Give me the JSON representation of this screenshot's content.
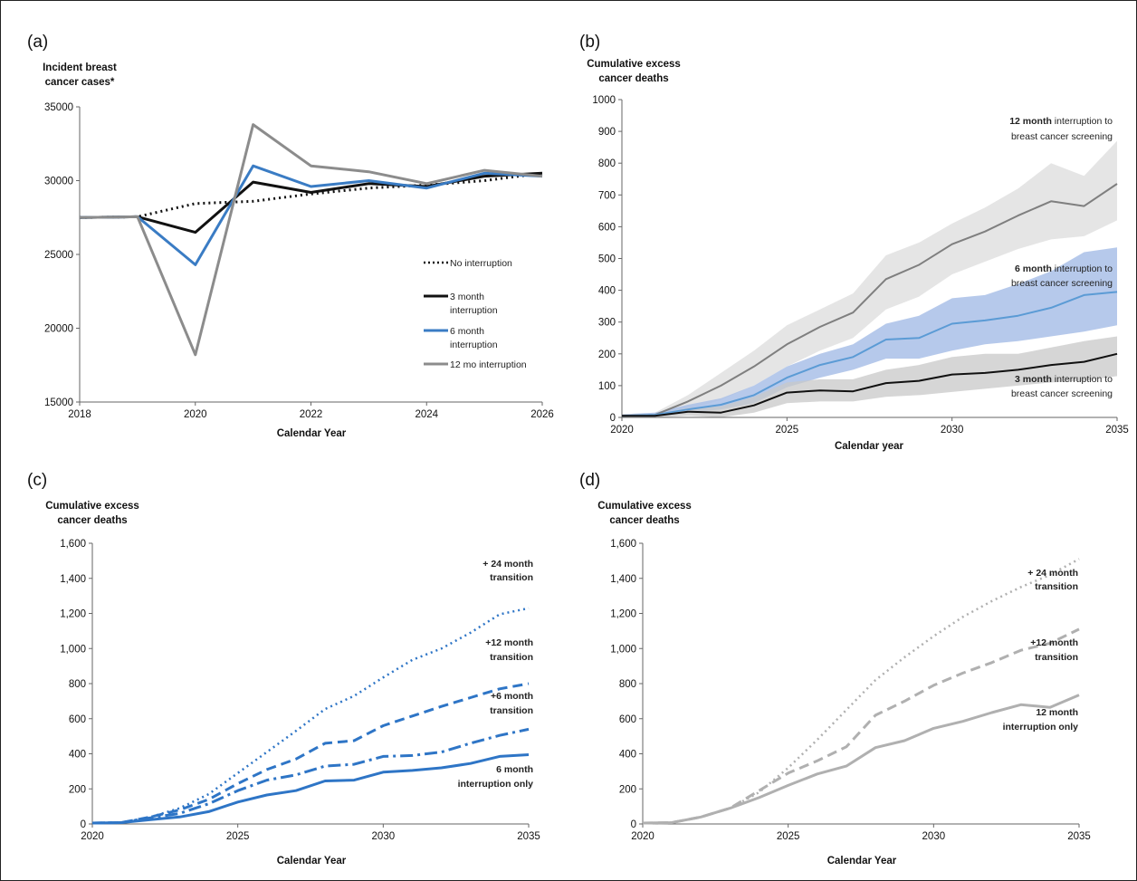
{
  "chart_data": [
    {
      "panel": "(a)",
      "type": "line",
      "title": "",
      "ylabel": "Incident breast cancer cases*",
      "xlabel": "Calendar Year",
      "xlim": [
        2018,
        2026
      ],
      "ylim": [
        15000,
        35000
      ],
      "xticks": [
        "2018",
        "2020",
        "2022",
        "2024",
        "2026"
      ],
      "yticks": [
        "15000",
        "20000",
        "25000",
        "30000",
        "35000"
      ],
      "x": [
        2018,
        2019,
        2020,
        2021,
        2022,
        2023,
        2024,
        2025,
        2026
      ],
      "series": [
        {
          "name": "No interruption",
          "color": "#111111",
          "style": "dotted",
          "values": [
            27500,
            27550,
            28450,
            28600,
            29100,
            29500,
            29700,
            30000,
            30500
          ]
        },
        {
          "name": "3 month interruption",
          "color": "#111111",
          "style": "solid",
          "values": [
            27500,
            27550,
            26500,
            29900,
            29200,
            29800,
            29600,
            30300,
            30500
          ]
        },
        {
          "name": "6 month interruption",
          "color": "#3a7cc4",
          "style": "solid",
          "values": [
            27500,
            27550,
            24300,
            31000,
            29600,
            30000,
            29500,
            30500,
            30300
          ]
        },
        {
          "name": "12 mo interruption",
          "color": "#8c8c8c",
          "style": "solid",
          "values": [
            27500,
            27550,
            18200,
            33800,
            31000,
            30600,
            29800,
            30700,
            30300
          ]
        }
      ]
    },
    {
      "panel": "(b)",
      "type": "line",
      "title": "",
      "ylabel": "Cumulative excess cancer deaths",
      "xlabel": "Calendar year",
      "xlim": [
        2020,
        2035
      ],
      "ylim": [
        0,
        1000
      ],
      "xticks": [
        "2020",
        "2025",
        "2030",
        "2035"
      ],
      "yticks": [
        "0",
        "100",
        "200",
        "300",
        "400",
        "500",
        "600",
        "700",
        "800",
        "900",
        "1000"
      ],
      "x": [
        2020,
        2021,
        2022,
        2023,
        2024,
        2025,
        2026,
        2027,
        2028,
        2029,
        2030,
        2031,
        2032,
        2033,
        2034,
        2035
      ],
      "series": [
        {
          "name": "12 month interruption to breast cancer screening",
          "color": "#7f7f7f",
          "band_color": "#dcdcdc",
          "values": [
            5,
            8,
            50,
            100,
            160,
            230,
            285,
            330,
            435,
            480,
            545,
            585,
            635,
            680,
            665,
            735
          ],
          "lower": [
            0,
            2,
            25,
            55,
            100,
            160,
            210,
            250,
            340,
            380,
            450,
            490,
            530,
            560,
            570,
            620
          ],
          "upper": [
            10,
            15,
            70,
            140,
            210,
            290,
            340,
            390,
            510,
            550,
            610,
            660,
            720,
            800,
            760,
            870
          ]
        },
        {
          "name": "6 month interruption to breast cancer screening",
          "color": "#5b9bd5",
          "band_color": "#a9bfe8",
          "values": [
            5,
            8,
            25,
            40,
            70,
            125,
            165,
            190,
            245,
            250,
            295,
            305,
            320,
            345,
            385,
            395
          ],
          "lower": [
            0,
            2,
            15,
            25,
            45,
            95,
            125,
            150,
            185,
            185,
            210,
            230,
            240,
            255,
            270,
            290
          ],
          "upper": [
            10,
            15,
            40,
            60,
            100,
            160,
            200,
            230,
            295,
            320,
            375,
            385,
            420,
            460,
            520,
            535
          ]
        },
        {
          "name": "3 month interruption to breast cancer screening",
          "color": "#111111",
          "band_color": "#c8c8c8",
          "values": [
            5,
            5,
            18,
            15,
            38,
            78,
            85,
            82,
            108,
            115,
            135,
            140,
            150,
            165,
            175,
            200
          ],
          "lower": [
            0,
            0,
            5,
            0,
            15,
            45,
            50,
            50,
            65,
            70,
            80,
            90,
            100,
            110,
            115,
            130
          ],
          "upper": [
            10,
            10,
            30,
            35,
            65,
            110,
            120,
            120,
            150,
            165,
            190,
            200,
            200,
            220,
            240,
            255
          ]
        }
      ],
      "annotations": [
        {
          "bold": "12 month",
          "rest": " interruption to",
          "line2": "breast cancer screening"
        },
        {
          "bold": "6 month",
          "rest": " interruption to",
          "line2": "breast cancer screening"
        },
        {
          "bold": "3 month",
          "rest": " interruption to",
          "line2": "breast cancer screening"
        }
      ]
    },
    {
      "panel": "(c)",
      "type": "line",
      "title": "",
      "ylabel": "Cumulative excess cancer deaths",
      "xlabel": "Calendar Year",
      "xlim": [
        2020,
        2035
      ],
      "ylim": [
        0,
        1600
      ],
      "xticks": [
        "2020",
        "2025",
        "2030",
        "2035"
      ],
      "yticks": [
        "0",
        "200",
        "400",
        "600",
        "800",
        "1,000",
        "1,200",
        "1,400",
        "1,600"
      ],
      "x": [
        2020,
        2021,
        2022,
        2023,
        2024,
        2025,
        2026,
        2027,
        2028,
        2029,
        2030,
        2031,
        2032,
        2033,
        2034,
        2035
      ],
      "series": [
        {
          "name": "+ 24 month transition",
          "color": "#2e75c6",
          "style": "dotted",
          "values": [
            5,
            8,
            40,
            90,
            170,
            290,
            410,
            530,
            655,
            730,
            835,
            935,
            1000,
            1090,
            1195,
            1230
          ]
        },
        {
          "name": "+12 month transition",
          "color": "#2e75c6",
          "style": "dashed",
          "values": [
            5,
            8,
            40,
            80,
            140,
            230,
            310,
            370,
            460,
            475,
            560,
            615,
            670,
            720,
            770,
            800
          ]
        },
        {
          "name": "+6 month transition",
          "color": "#2e75c6",
          "style": "dashdot",
          "values": [
            5,
            8,
            35,
            60,
            115,
            190,
            250,
            280,
            330,
            340,
            385,
            390,
            410,
            460,
            505,
            540
          ]
        },
        {
          "name": "6 month interruption only",
          "color": "#2e75c6",
          "style": "solid",
          "values": [
            5,
            8,
            25,
            40,
            70,
            125,
            165,
            190,
            245,
            250,
            295,
            305,
            320,
            345,
            385,
            395
          ]
        }
      ],
      "labels": [
        {
          "line1": "+ 24 month",
          "line2": "transition"
        },
        {
          "line1": "+12 month",
          "line2": "transition"
        },
        {
          "line1": "+6 month",
          "line2": "transition"
        },
        {
          "line1": "6 month",
          "line2": "interruption only"
        }
      ]
    },
    {
      "panel": "(d)",
      "type": "line",
      "title": "",
      "ylabel": "Cumulative excess cancer deaths",
      "xlabel": "Calendar Year",
      "xlim": [
        2020,
        2035
      ],
      "ylim": [
        0,
        1600
      ],
      "xticks": [
        "2020",
        "2025",
        "2030",
        "2035"
      ],
      "yticks": [
        "0",
        "200",
        "400",
        "600",
        "800",
        "1,000",
        "1,200",
        "1,400",
        "1,600"
      ],
      "x": [
        2020,
        2021,
        2022,
        2023,
        2024,
        2025,
        2026,
        2027,
        2028,
        2029,
        2030,
        2031,
        2032,
        2033,
        2034,
        2035
      ],
      "series": [
        {
          "name": "+ 24 month transition",
          "color": "#b0b0b0",
          "style": "dotted",
          "values": [
            5,
            8,
            40,
            90,
            180,
            320,
            480,
            650,
            820,
            950,
            1070,
            1180,
            1270,
            1350,
            1420,
            1510
          ]
        },
        {
          "name": "+12 month transition",
          "color": "#b0b0b0",
          "style": "dashed",
          "values": [
            5,
            8,
            40,
            90,
            190,
            290,
            360,
            440,
            620,
            700,
            790,
            860,
            920,
            990,
            1030,
            1110
          ]
        },
        {
          "name": "12 month interruption only",
          "color": "#b0b0b0",
          "style": "solid",
          "values": [
            5,
            8,
            40,
            90,
            150,
            220,
            285,
            330,
            435,
            475,
            545,
            585,
            635,
            680,
            665,
            735
          ]
        }
      ],
      "labels": [
        {
          "line1": "+ 24 month",
          "line2": "transition"
        },
        {
          "line1": "+12 month",
          "line2": "transition"
        },
        {
          "line1": "12 month",
          "line2": "interruption only"
        }
      ]
    }
  ],
  "panel_a_legend": [
    "No interruption",
    "3 month",
    "interruption",
    "6 month",
    "interruption",
    "12 mo interruption"
  ],
  "panel_a_ylabel_lines": [
    "Incident breast",
    "cancer cases*"
  ],
  "deaths_ylabel_lines": [
    "Cumulative excess",
    "cancer deaths"
  ]
}
